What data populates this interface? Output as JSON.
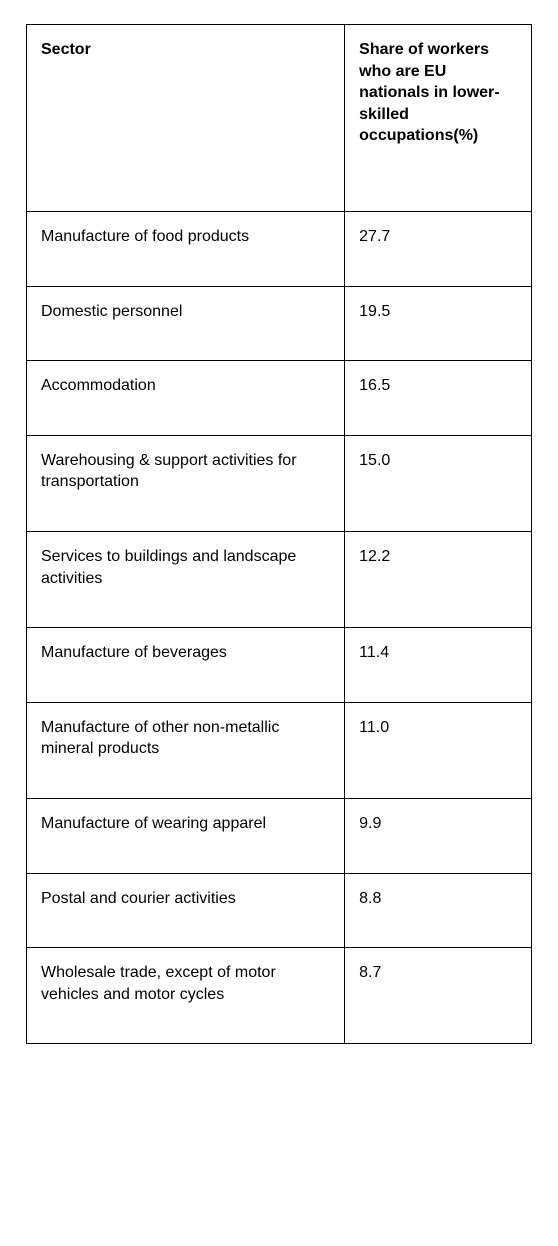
{
  "table": {
    "columns": [
      {
        "label": "Sector"
      },
      {
        "label": "Share of workers who are EU nationals in lower-skilled occupations(%)"
      }
    ],
    "rows": [
      {
        "sector": "Manufacture of food products",
        "share": "27.7"
      },
      {
        "sector": "Domestic personnel",
        "share": "19.5"
      },
      {
        "sector": "Accommodation",
        "share": "16.5"
      },
      {
        "sector": "Warehousing & support activities for transportation",
        "share": "15.0"
      },
      {
        "sector": "Services to buildings and landscape activities",
        "share": "12.2"
      },
      {
        "sector": "Manufacture of beverages",
        "share": "11.4"
      },
      {
        "sector": "Manufacture of other non-metallic mineral products",
        "share": "11.0"
      },
      {
        "sector": "Manufacture of wearing apparel",
        "share": "9.9"
      },
      {
        "sector": "Postal and courier activities",
        "share": "8.8"
      },
      {
        "sector": "Wholesale trade, except of motor vehicles and motor cycles",
        "share": "8.7"
      }
    ],
    "style": {
      "border_color": "#000000",
      "background_color": "#ffffff",
      "text_color": "#000000",
      "header_font_weight": 700,
      "body_font_weight": 400,
      "font_size_pt": 12,
      "col_widths_pct": [
        63,
        37
      ]
    }
  }
}
